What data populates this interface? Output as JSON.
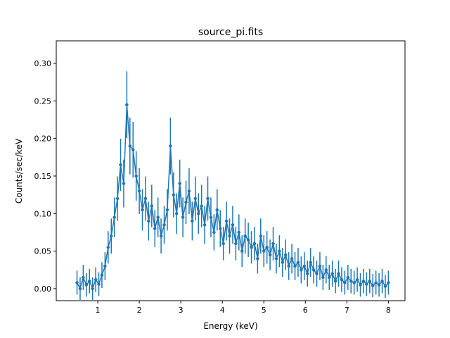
{
  "chart_data": {
    "type": "line",
    "title": "source_pi.fits",
    "xlabel": "Energy (keV)",
    "ylabel": "Counts/sec/keV",
    "xlim": [
      0.0,
      8.4
    ],
    "ylim": [
      -0.016,
      0.33
    ],
    "xticks": [
      1,
      2,
      3,
      4,
      5,
      6,
      7,
      8
    ],
    "xtick_labels": [
      "1",
      "2",
      "3",
      "4",
      "5",
      "6",
      "7",
      "8"
    ],
    "yticks": [
      0.0,
      0.05,
      0.1,
      0.15,
      0.2,
      0.25,
      0.3
    ],
    "ytick_labels": [
      "0.00",
      "0.05",
      "0.10",
      "0.15",
      "0.20",
      "0.25",
      "0.30"
    ],
    "grid": false,
    "series_color": "#1f77b4",
    "x_start": 0.5,
    "x_step": 0.075,
    "y": [
      0.008,
      0.0,
      0.015,
      0.005,
      0.01,
      0.0,
      0.012,
      0.006,
      0.018,
      0.03,
      0.055,
      0.07,
      0.095,
      0.12,
      0.165,
      0.14,
      0.245,
      0.19,
      0.185,
      0.15,
      0.13,
      0.105,
      0.12,
      0.09,
      0.11,
      0.08,
      0.095,
      0.07,
      0.085,
      0.105,
      0.19,
      0.125,
      0.1,
      0.14,
      0.095,
      0.115,
      0.13,
      0.09,
      0.12,
      0.1,
      0.11,
      0.085,
      0.12,
      0.095,
      0.075,
      0.105,
      0.08,
      0.06,
      0.09,
      0.07,
      0.085,
      0.06,
      0.075,
      0.05,
      0.07,
      0.065,
      0.055,
      0.06,
      0.04,
      0.07,
      0.05,
      0.055,
      0.045,
      0.06,
      0.04,
      0.05,
      0.035,
      0.045,
      0.03,
      0.04,
      0.03,
      0.035,
      0.025,
      0.03,
      0.02,
      0.035,
      0.025,
      0.02,
      0.03,
      0.015,
      0.025,
      0.015,
      0.02,
      0.01,
      0.02,
      0.012,
      0.008,
      0.015,
      0.01,
      0.008,
      0.012,
      0.005,
      0.01,
      0.006,
      0.01,
      0.004,
      0.008,
      0.005,
      0.01,
      0.003,
      0.008
    ],
    "yerr_base": 0.015,
    "yerr_fraction": 0.12
  }
}
